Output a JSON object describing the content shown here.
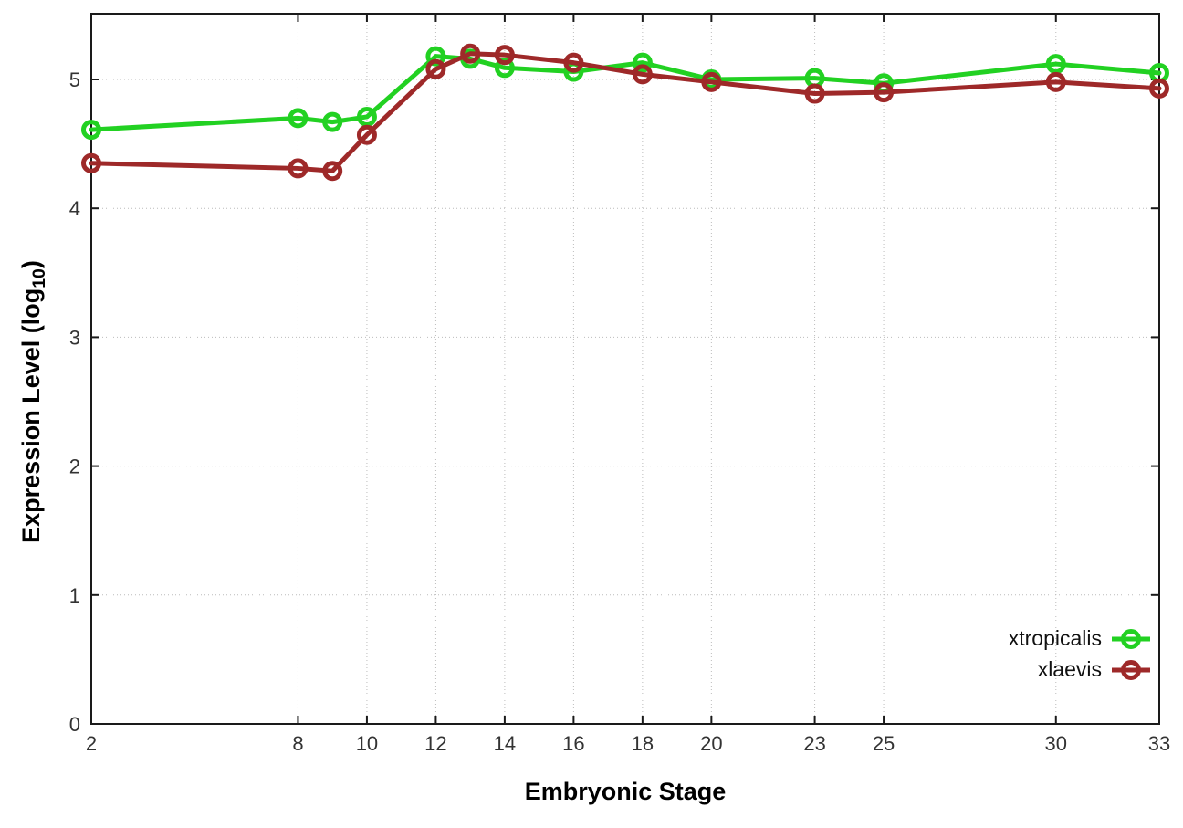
{
  "chart_data": {
    "type": "line",
    "title": "",
    "xlabel": "Embryonic Stage",
    "ylabel": "Expression Level (log10)",
    "ylabel_parts": {
      "pre": "Expression Level (log",
      "sub": "10",
      "post": ")"
    },
    "x": [
      2,
      8,
      9,
      10,
      12,
      13,
      14,
      16,
      18,
      20,
      23,
      25,
      30,
      33
    ],
    "x_ticks": [
      2,
      8,
      10,
      12,
      14,
      16,
      18,
      20,
      23,
      25,
      30,
      33
    ],
    "y_ticks": [
      0,
      1,
      2,
      3,
      4,
      5
    ],
    "xlim": [
      2,
      33
    ],
    "ylim": [
      0,
      5.51
    ],
    "grid": true,
    "legend_position": "inside-bottom-right",
    "series": [
      {
        "name": "xtropicalis",
        "color": "#22d122",
        "marker": "open-circle",
        "values": [
          4.61,
          4.7,
          4.67,
          4.71,
          5.18,
          5.16,
          5.09,
          5.06,
          5.13,
          5.0,
          5.01,
          4.97,
          5.12,
          5.05
        ]
      },
      {
        "name": "xlaevis",
        "color": "#9e2929",
        "marker": "open-circle",
        "values": [
          4.35,
          4.31,
          4.29,
          4.57,
          5.08,
          5.2,
          5.19,
          5.13,
          5.04,
          4.98,
          4.89,
          4.9,
          4.98,
          4.93
        ]
      }
    ]
  },
  "axes": {
    "border_color": "#1a1a1a",
    "grid_color": "#bcbcbc",
    "tick_label_color": "#333333"
  }
}
